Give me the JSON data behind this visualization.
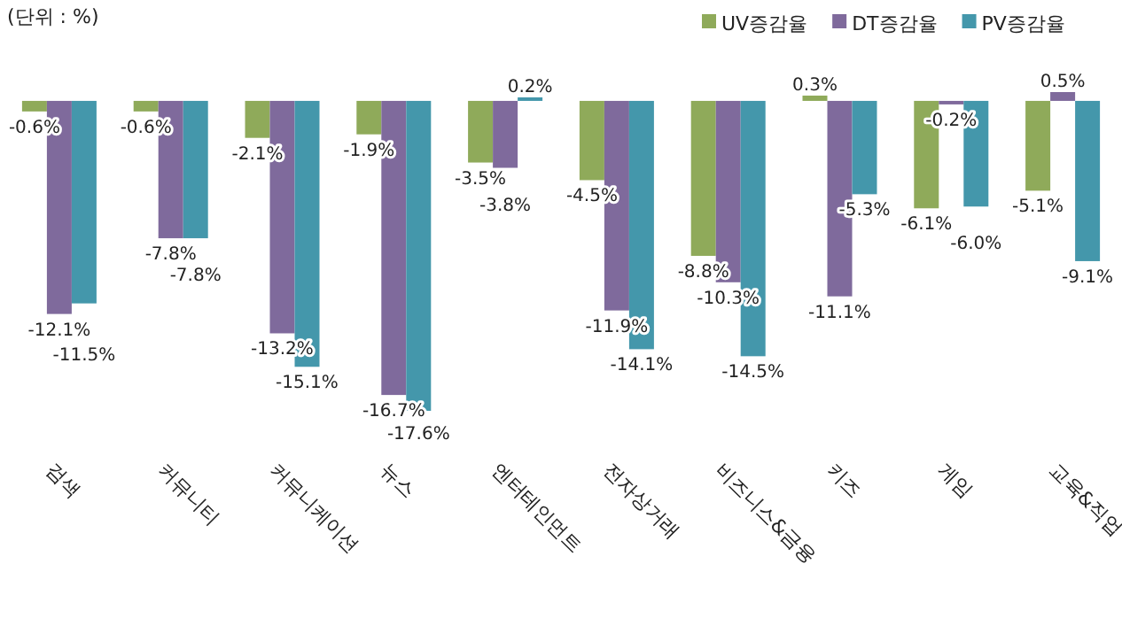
{
  "chart_data": {
    "type": "bar",
    "categories": [
      "검색",
      "커뮤니티",
      "커뮤니케이션",
      "뉴스",
      "엔터테인먼트",
      "전자상거래",
      "비즈니스&금융",
      "키즈",
      "게임",
      "교육&직업"
    ],
    "series": [
      {
        "name": "UV증감율",
        "color": "#8faa5a",
        "values": [
          -0.6,
          -0.6,
          -2.1,
          -1.9,
          -3.5,
          -4.5,
          -8.8,
          0.3,
          -6.1,
          -5.1
        ],
        "value_labels": [
          "-0.6%",
          "-0.6%",
          "-2.1%",
          "-1.9%",
          "-3.5%",
          "-4.5%",
          "-8.8%",
          "0.3%",
          "-6.1%",
          "-5.1%"
        ]
      },
      {
        "name": "DT증감율",
        "color": "#7f6a9c",
        "values": [
          -12.1,
          -7.8,
          -13.2,
          -16.7,
          -3.8,
          -11.9,
          -10.3,
          -11.1,
          -0.2,
          0.5
        ],
        "value_labels": [
          "-12.1%",
          "-7.8%",
          "-13.2%",
          "-16.7%",
          "-3.8%",
          "-11.9%",
          "-10.3%",
          "-11.1%",
          "-0.2%",
          "0.5%"
        ]
      },
      {
        "name": "PV증감율",
        "color": "#4497ab",
        "values": [
          -11.5,
          -7.8,
          -15.1,
          -17.6,
          0.2,
          -14.1,
          -14.5,
          -5.3,
          -6.0,
          -9.1
        ],
        "value_labels": [
          "-11.5%",
          "-7.8%",
          "-15.1%",
          "-17.6%",
          "0.2%",
          "-14.1%",
          "-14.5%",
          "-5.3%",
          "-6.0%",
          "-9.1%"
        ]
      }
    ],
    "annotations": [
      "(단위 : %)"
    ],
    "legend": "top right"
  }
}
